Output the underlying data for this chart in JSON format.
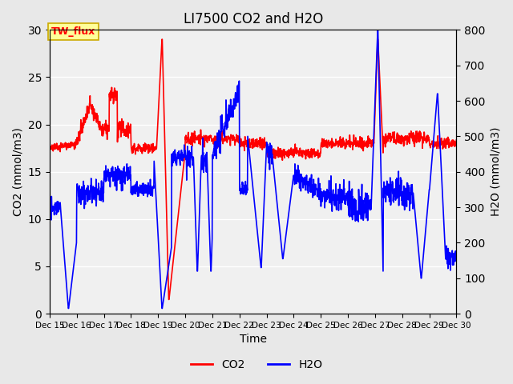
{
  "title": "LI7500 CO2 and H2O",
  "xlabel": "Time",
  "ylabel_left": "CO2 (mmol/m3)",
  "ylabel_right": "H2O (mmol/m3)",
  "xlim": [
    15,
    30
  ],
  "ylim_left": [
    0,
    30
  ],
  "ylim_right": [
    0,
    800
  ],
  "xtick_labels": [
    "Dec 15",
    "Dec 16",
    "Dec 17",
    "Dec 18",
    "Dec 19",
    "Dec 20",
    "Dec 21",
    "Dec 22",
    "Dec 23",
    "Dec 24",
    "Dec 25",
    "Dec 26",
    "Dec 27",
    "Dec 28",
    "Dec 29",
    "Dec 30"
  ],
  "yticks_left": [
    0,
    5,
    10,
    15,
    20,
    25,
    30
  ],
  "yticks_right": [
    0,
    100,
    200,
    300,
    400,
    500,
    600,
    700,
    800
  ],
  "co2_color": "#FF0000",
  "h2o_color": "#0000FF",
  "bg_color": "#E8E8E8",
  "plot_bg_color": "#F0F0F0",
  "annotation_text": "TW_flux",
  "annotation_bg": "#FFFF99",
  "annotation_border": "#CCAA00",
  "linewidth": 1.2
}
